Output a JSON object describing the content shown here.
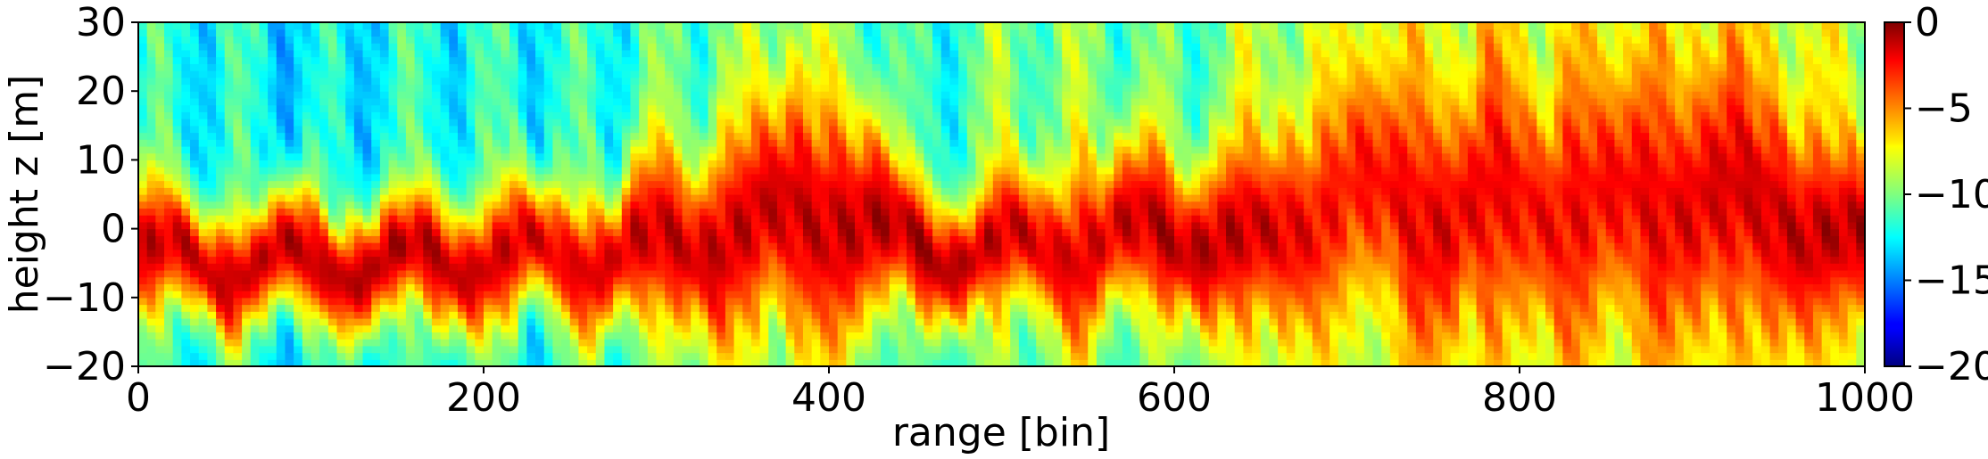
{
  "chart_data": {
    "type": "heatmap",
    "title": "",
    "xlabel": "range [bin]",
    "ylabel": "height z [m]",
    "xlim": [
      0,
      1000
    ],
    "ylim": [
      -20,
      30
    ],
    "x_ticks": [
      0,
      200,
      400,
      600,
      800,
      1000
    ],
    "y_ticks": [
      -20,
      -10,
      0,
      10,
      20,
      30
    ],
    "colormap": "jet",
    "colorbar": {
      "range": [
        -20,
        0
      ],
      "ticks": [
        0,
        -5,
        -10,
        -15,
        -20
      ],
      "tick_labels": [
        "0",
        "−5",
        "−10",
        "−15",
        "−20"
      ]
    },
    "grid": false,
    "range_profile": {
      "x": [
        0,
        50,
        100,
        150,
        200,
        250,
        300,
        350,
        400,
        450,
        500,
        550,
        600,
        650,
        700,
        750,
        800,
        850,
        900,
        950,
        1000
      ],
      "band_center_z": [
        -4,
        -5,
        -5,
        -5,
        -4,
        -4,
        -3,
        0,
        3,
        -3,
        -3,
        -2,
        0,
        -3,
        6,
        2,
        4,
        3,
        5,
        3,
        -4
      ],
      "band_halfwidth_z": [
        12,
        11,
        12,
        11,
        13,
        12,
        16,
        20,
        26,
        12,
        11,
        16,
        15,
        17,
        22,
        24,
        22,
        24,
        26,
        22,
        14
      ],
      "peak_value": [
        -1.5,
        -1.5,
        -1.2,
        -1.0,
        -1.5,
        -2,
        -1.5,
        -1.5,
        -1.5,
        -0.8,
        -1.5,
        -2,
        -1,
        -1.5,
        -3,
        -2,
        -2.5,
        -2.5,
        -2,
        -1.5,
        -1
      ],
      "background_value": [
        -12,
        -12,
        -13,
        -12,
        -12,
        -12,
        -11,
        -10,
        -10,
        -12,
        -10,
        -10,
        -11,
        -9,
        -9,
        -8,
        -8,
        -8,
        -8,
        -8,
        -9
      ]
    }
  }
}
